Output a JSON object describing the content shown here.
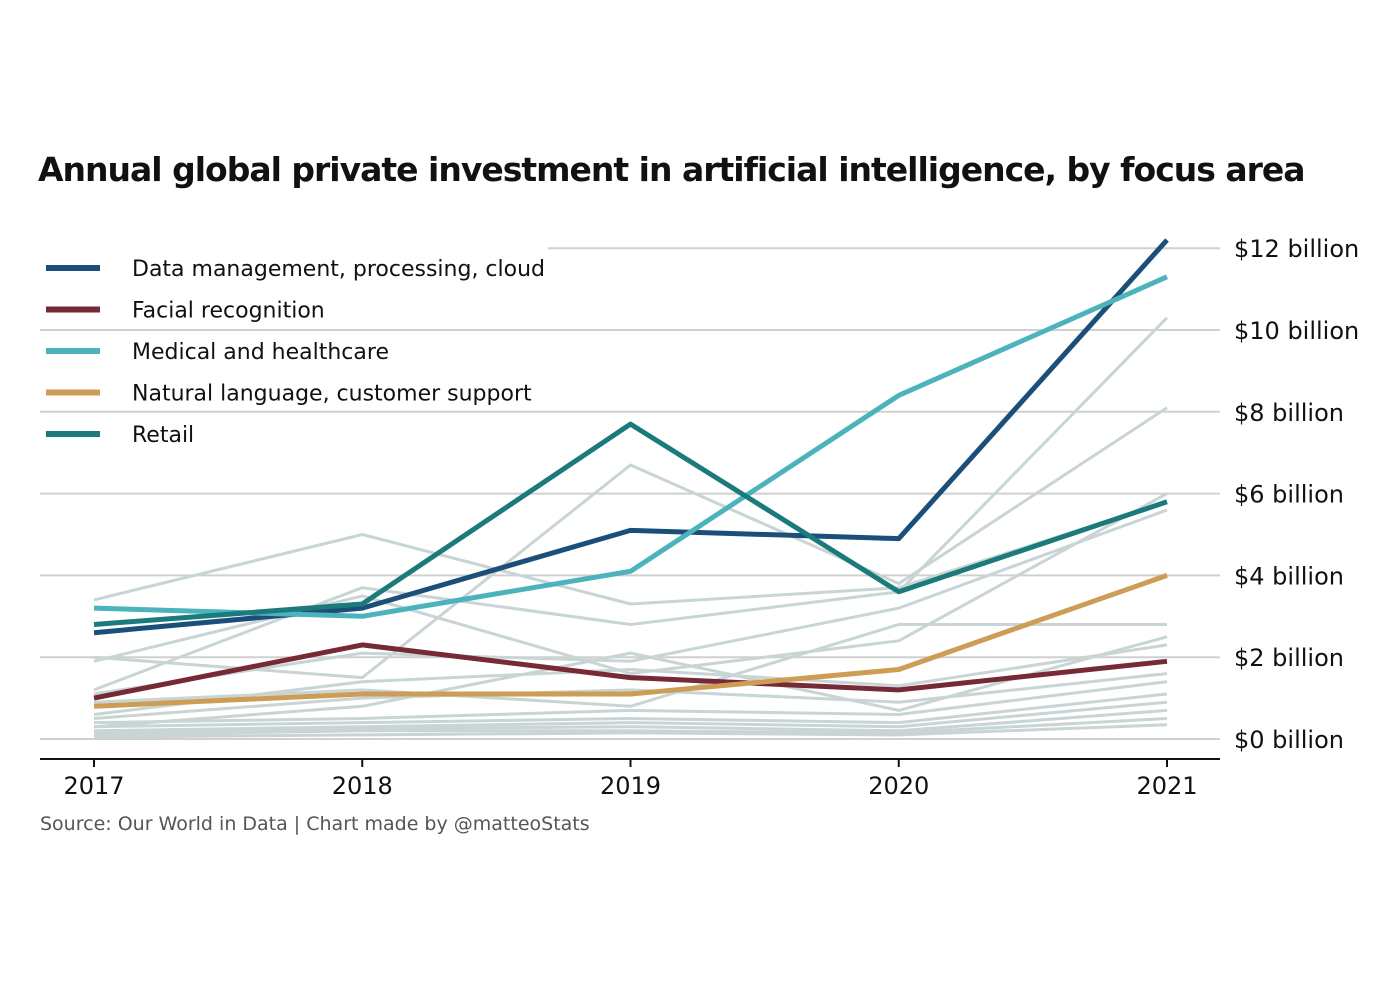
{
  "chart_data": {
    "type": "line",
    "title": "Annual global private investment in artificial intelligence, by focus area",
    "source": "Source: Our World in Data | Chart made by @matteoStats",
    "x": [
      2017,
      2018,
      2019,
      2020,
      2021
    ],
    "xticks": [
      "2017",
      "2018",
      "2019",
      "2020",
      "2021"
    ],
    "ylim": [
      0,
      12.5
    ],
    "yticks": [
      0,
      2,
      4,
      6,
      8,
      10,
      12
    ],
    "ytick_labels": [
      "$0 billion",
      "$2 billion",
      "$4 billion",
      "$6 billion",
      "$8 billion",
      "$10 billion",
      "$12 billion"
    ],
    "grid": true,
    "legend_position": "top-left",
    "highlighted_series": [
      {
        "name": "Data management, processing, cloud",
        "color": "#1b4f7a",
        "values": [
          2.6,
          3.2,
          5.1,
          4.9,
          12.2
        ]
      },
      {
        "name": "Facial recognition",
        "color": "#762a35",
        "values": [
          1.0,
          2.3,
          1.5,
          1.2,
          1.9
        ]
      },
      {
        "name": "Medical and healthcare",
        "color": "#4cb3bd",
        "values": [
          3.2,
          3.0,
          4.1,
          8.4,
          11.3
        ]
      },
      {
        "name": "Natural language, customer support",
        "color": "#cd9d55",
        "values": [
          0.8,
          1.1,
          1.1,
          1.7,
          4.0
        ]
      },
      {
        "name": "Retail",
        "color": "#1a7a7c",
        "values": [
          2.8,
          3.3,
          7.7,
          3.6,
          5.8
        ]
      }
    ],
    "background_series_color": "#c9d4d4",
    "background_series": [
      {
        "values": [
          3.4,
          5.0,
          3.3,
          3.7,
          5.8
        ]
      },
      {
        "values": [
          2.0,
          1.5,
          6.7,
          3.8,
          8.1
        ]
      },
      {
        "values": [
          1.2,
          3.7,
          2.8,
          3.6,
          10.3
        ]
      },
      {
        "values": [
          1.9,
          3.5,
          1.6,
          2.4,
          6.0
        ]
      },
      {
        "values": [
          1.1,
          2.1,
          1.9,
          3.2,
          5.6
        ]
      },
      {
        "values": [
          0.9,
          1.2,
          0.8,
          2.8,
          2.8
        ]
      },
      {
        "values": [
          0.3,
          0.8,
          2.1,
          0.7,
          2.5
        ]
      },
      {
        "values": [
          0.6,
          1.4,
          1.7,
          1.3,
          2.3
        ]
      },
      {
        "values": [
          0.5,
          1.0,
          1.2,
          0.9,
          1.6
        ]
      },
      {
        "values": [
          0.4,
          0.5,
          0.7,
          0.6,
          1.4
        ]
      },
      {
        "values": [
          0.3,
          0.4,
          0.5,
          0.4,
          1.1
        ]
      },
      {
        "values": [
          0.2,
          0.3,
          0.4,
          0.3,
          0.9
        ]
      },
      {
        "values": [
          0.15,
          0.25,
          0.3,
          0.2,
          0.7
        ]
      },
      {
        "values": [
          0.1,
          0.2,
          0.2,
          0.15,
          0.5
        ]
      },
      {
        "values": [
          0.05,
          0.1,
          0.15,
          0.1,
          0.35
        ]
      }
    ]
  }
}
